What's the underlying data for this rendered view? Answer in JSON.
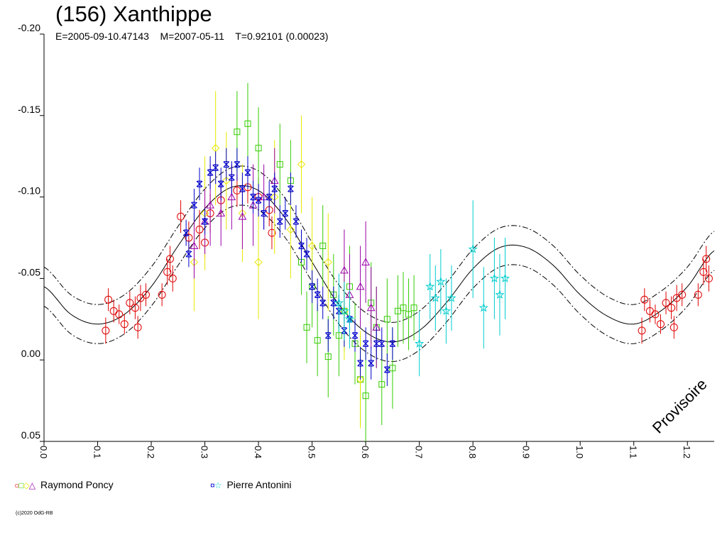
{
  "chart_data": {
    "type": "scatter",
    "title": "(156) Xanthippe",
    "subtitle": "E=2005-09-10.47143    M=2007-05-11    T=0.92101 (0.00023)",
    "xlim": [
      0.0,
      1.25
    ],
    "ylim": [
      -0.2,
      0.05
    ],
    "y_inverted": true,
    "x_ticks": [
      "0.0",
      "0.1",
      "0.2",
      "0.3",
      "0.4",
      "0.5",
      "0.6",
      "0.7",
      "0.8",
      "0.9",
      "1.0",
      "1.1",
      "1.2"
    ],
    "y_ticks": [
      "-0.20",
      "-0.15",
      "-0.10",
      "-0.05",
      "0.00",
      "0.05"
    ],
    "watermark": "Provisoire",
    "grid": false,
    "fit_curve": {
      "x": [
        0.0,
        0.05,
        0.1,
        0.15,
        0.2,
        0.25,
        0.3,
        0.35,
        0.4,
        0.45,
        0.5,
        0.55,
        0.6,
        0.65,
        0.7,
        0.75,
        0.8,
        0.85,
        0.9,
        0.95,
        1.0,
        1.05,
        1.1,
        1.15,
        1.2,
        1.25
      ],
      "y": [
        -0.045,
        -0.028,
        -0.022,
        -0.028,
        -0.045,
        -0.07,
        -0.093,
        -0.106,
        -0.104,
        -0.087,
        -0.06,
        -0.034,
        -0.017,
        -0.011,
        -0.018,
        -0.035,
        -0.056,
        -0.069,
        -0.069,
        -0.058,
        -0.04,
        -0.027,
        -0.022,
        -0.03,
        -0.045,
        -0.067
      ],
      "band": 0.012
    },
    "series": [
      {
        "name": "Raymond Poncy",
        "marker": "circle",
        "color": "#e00000",
        "x": [
          0.115,
          0.12,
          0.13,
          0.14,
          0.15,
          0.16,
          0.17,
          0.175,
          0.18,
          0.19,
          0.22,
          0.23,
          0.235,
          0.24,
          0.255,
          0.27,
          0.29,
          0.3,
          0.31,
          0.33,
          0.36,
          0.38,
          0.4,
          0.42,
          0.425
        ],
        "y": [
          -0.018,
          -0.037,
          -0.03,
          -0.028,
          -0.022,
          -0.035,
          -0.032,
          -0.02,
          -0.038,
          -0.04,
          -0.04,
          -0.054,
          -0.062,
          -0.05,
          -0.088,
          -0.075,
          -0.08,
          -0.072,
          -0.09,
          -0.098,
          -0.104,
          -0.106,
          -0.1,
          -0.092,
          -0.078
        ],
        "err": [
          0.008,
          0.007,
          0.007,
          0.006,
          0.006,
          0.007,
          0.007,
          0.007,
          0.008,
          0.007,
          0.007,
          0.008,
          0.008,
          0.008,
          0.01,
          0.01,
          0.012,
          0.01,
          0.012,
          0.01,
          0.01,
          0.01,
          0.012,
          0.01,
          0.01
        ]
      },
      {
        "name": "Raymond Poncy",
        "marker": "square",
        "color": "#33cc00",
        "x": [
          0.48,
          0.49,
          0.5,
          0.51,
          0.52,
          0.53,
          0.54,
          0.55,
          0.56,
          0.57,
          0.58,
          0.59,
          0.6,
          0.61,
          0.62,
          0.63,
          0.64,
          0.65,
          0.66,
          0.67,
          0.68,
          0.69,
          0.36,
          0.38,
          0.4,
          0.44,
          0.46
        ],
        "y": [
          -0.06,
          -0.02,
          -0.045,
          -0.012,
          -0.07,
          -0.002,
          -0.04,
          -0.015,
          -0.03,
          -0.045,
          -0.01,
          0.012,
          0.022,
          -0.035,
          -0.02,
          0.015,
          -0.025,
          0.005,
          -0.03,
          -0.032,
          -0.028,
          -0.032,
          -0.14,
          -0.145,
          -0.13,
          -0.12,
          -0.11
        ],
        "err": [
          0.02,
          0.022,
          0.025,
          0.022,
          0.025,
          0.025,
          0.025,
          0.025,
          0.025,
          0.025,
          0.025,
          0.028,
          0.028,
          0.025,
          0.025,
          0.025,
          0.025,
          0.025,
          0.022,
          0.022,
          0.022,
          0.02,
          0.025,
          0.025,
          0.025,
          0.025,
          0.025
        ]
      },
      {
        "name": "Raymond Poncy",
        "marker": "diamond",
        "color": "#e8e800",
        "x": [
          0.28,
          0.3,
          0.32,
          0.34,
          0.37,
          0.4,
          0.43,
          0.46,
          0.48,
          0.5,
          0.53,
          0.56,
          0.59
        ],
        "y": [
          -0.06,
          -0.09,
          -0.13,
          -0.11,
          -0.09,
          -0.06,
          -0.1,
          -0.08,
          -0.12,
          -0.07,
          -0.06,
          -0.03,
          0.012
        ],
        "err": [
          0.03,
          0.035,
          0.035,
          0.03,
          0.03,
          0.035,
          0.035,
          0.03,
          0.03,
          0.03,
          0.03,
          0.03,
          0.03
        ]
      },
      {
        "name": "Raymond Poncy",
        "marker": "triangle",
        "color": "#9900aa",
        "x": [
          0.28,
          0.3,
          0.31,
          0.33,
          0.35,
          0.37,
          0.39,
          0.41,
          0.43,
          0.56,
          0.57,
          0.59,
          0.6,
          0.61,
          0.62
        ],
        "y": [
          -0.07,
          -0.085,
          -0.095,
          -0.09,
          -0.1,
          -0.088,
          -0.095,
          -0.1,
          -0.11,
          -0.055,
          -0.04,
          -0.045,
          -0.06,
          -0.032,
          -0.02
        ],
        "err": [
          0.02,
          0.02,
          0.025,
          0.02,
          0.02,
          0.02,
          0.025,
          0.02,
          0.02,
          0.025,
          0.025,
          0.025,
          0.025,
          0.025,
          0.025
        ]
      },
      {
        "name": "Pierre Antonini",
        "marker": "star4",
        "color": "#0000cc",
        "x": [
          0.265,
          0.27,
          0.28,
          0.29,
          0.3,
          0.31,
          0.32,
          0.33,
          0.34,
          0.35,
          0.36,
          0.37,
          0.38,
          0.39,
          0.4,
          0.41,
          0.42,
          0.43,
          0.44,
          0.45,
          0.46,
          0.47,
          0.48,
          0.49,
          0.5,
          0.51,
          0.52,
          0.53,
          0.54,
          0.55,
          0.56,
          0.57,
          0.58,
          0.59,
          0.6,
          0.61,
          0.62,
          0.63,
          0.64,
          0.65
        ],
        "y": [
          -0.078,
          -0.065,
          -0.095,
          -0.108,
          -0.085,
          -0.115,
          -0.118,
          -0.108,
          -0.12,
          -0.112,
          -0.12,
          -0.105,
          -0.115,
          -0.1,
          -0.098,
          -0.09,
          -0.1,
          -0.105,
          -0.085,
          -0.09,
          -0.105,
          -0.085,
          -0.07,
          -0.065,
          -0.045,
          -0.04,
          -0.035,
          -0.015,
          -0.035,
          -0.03,
          -0.018,
          -0.025,
          -0.015,
          0.002,
          -0.01,
          0.002,
          -0.01,
          -0.01,
          0.006,
          -0.01
        ],
        "err": [
          0.008,
          0.008,
          0.01,
          0.01,
          0.008,
          0.01,
          0.01,
          0.01,
          0.01,
          0.01,
          0.01,
          0.01,
          0.01,
          0.01,
          0.01,
          0.01,
          0.01,
          0.01,
          0.01,
          0.01,
          0.01,
          0.01,
          0.01,
          0.01,
          0.01,
          0.01,
          0.01,
          0.01,
          0.01,
          0.01,
          0.01,
          0.01,
          0.01,
          0.01,
          0.01,
          0.01,
          0.01,
          0.01,
          0.01,
          0.01
        ]
      },
      {
        "name": "Pierre Antonini",
        "marker": "star5",
        "color": "#00cccc",
        "x": [
          0.55,
          0.56,
          0.57,
          0.72,
          0.73,
          0.74,
          0.75,
          0.76,
          0.8,
          0.82,
          0.84,
          0.85,
          0.86,
          0.7
        ],
        "y": [
          -0.035,
          -0.03,
          -0.025,
          -0.045,
          -0.038,
          -0.048,
          -0.03,
          -0.038,
          -0.068,
          -0.032,
          -0.05,
          -0.04,
          -0.05,
          -0.01
        ],
        "err": [
          0.018,
          0.018,
          0.018,
          0.02,
          0.02,
          0.02,
          0.02,
          0.02,
          0.03,
          0.025,
          0.025,
          0.025,
          0.025,
          0.02
        ]
      }
    ]
  },
  "legend": {
    "poncy_label": "Raymond Poncy",
    "antonini_label": "Pierre Antonini"
  },
  "footer": {
    "copyright": "(c)2020 OdG-RB"
  }
}
